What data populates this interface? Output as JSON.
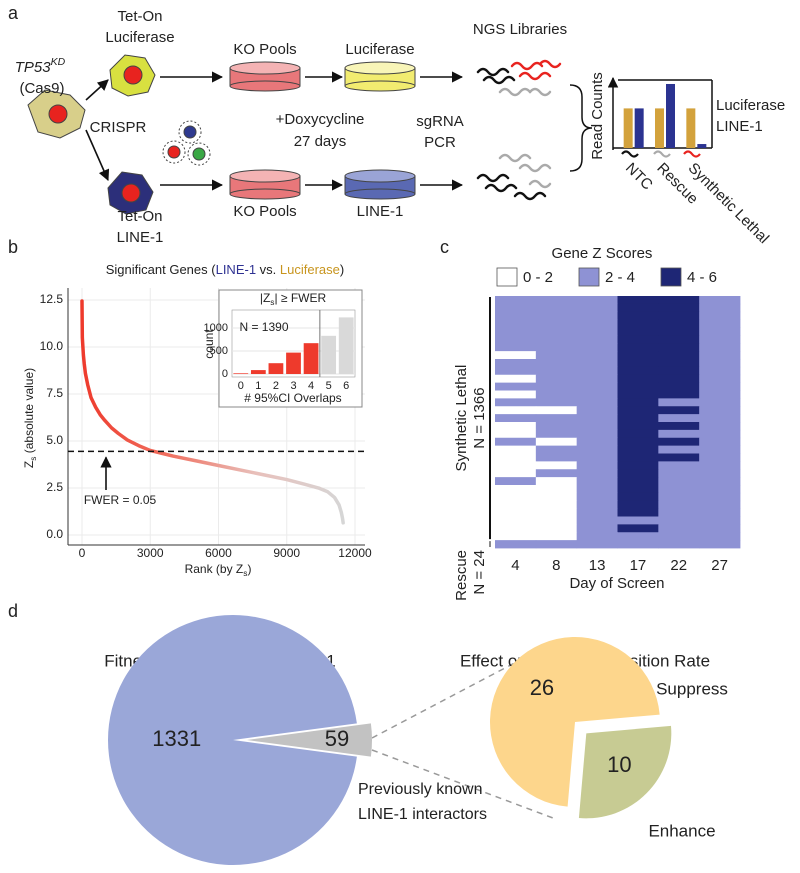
{
  "panel_labels": [
    "a",
    "b",
    "c",
    "d"
  ],
  "diagram": {
    "start_cell": {
      "label_parts": [
        {
          "text": "TP53",
          "italic": true
        },
        {
          "text": "KD",
          "sup": true,
          "italic": true
        }
      ],
      "sublabel": "(Cas9)"
    },
    "crispr": "CRISPR",
    "branches": [
      {
        "cell": [
          "Tet-On",
          "Luciferase"
        ],
        "pool": "KO Pools",
        "selected": "Luciferase",
        "color": "#c8951e"
      },
      {
        "cell": [
          "Tet-On",
          "LINE-1"
        ],
        "pool": "KO Pools",
        "selected": "LINE-1",
        "color": "#2e3192"
      }
    ],
    "treatment": [
      "+Doxycycline",
      "27 days"
    ],
    "amplification": [
      "sgRNA",
      "PCR"
    ],
    "libraries": "NGS Libraries"
  },
  "chart_data": [
    {
      "type": "bar",
      "ylabel": "Read Counts",
      "categories": [
        "NTC",
        "Rescue",
        "Synthetic Lethal"
      ],
      "series": [
        {
          "name": "Luciferase",
          "color": "#d3a23c",
          "values": [
            0.6,
            0.6,
            0.6
          ]
        },
        {
          "name": "LINE-1",
          "color": "#2b3391",
          "values": [
            0.6,
            0.97,
            0.06
          ]
        }
      ],
      "ylim": [
        0,
        1
      ]
    },
    {
      "type": "line",
      "title_parts": [
        {
          "text": "Significant Genes ("
        },
        {
          "text": "LINE-1",
          "color": "#2e3192"
        },
        {
          "text": " vs. "
        },
        {
          "text": "Luciferase",
          "color": "#c8951e"
        },
        {
          "text": ")"
        }
      ],
      "xlabel_parts": [
        {
          "text": "Rank (by Z"
        },
        {
          "text": "s",
          "sub": true
        },
        {
          "text": ")"
        }
      ],
      "ylabel_parts": [
        {
          "text": "Z"
        },
        {
          "text": "s",
          "sub": true
        },
        {
          "text": " (absolute value)"
        }
      ],
      "x": [
        0,
        15,
        30,
        60,
        100,
        150,
        250,
        400,
        600,
        800,
        1000,
        1300,
        1600,
        2000,
        2500,
        3000,
        3500,
        4000,
        5000,
        6000,
        7000,
        8000,
        9000,
        9800,
        10400,
        10800,
        11100,
        11300,
        11400,
        11450,
        11480
      ],
      "values": [
        12.45,
        10.5,
        10.2,
        9.6,
        9.1,
        8.6,
        8.0,
        7.3,
        6.8,
        6.4,
        6.1,
        5.7,
        5.4,
        5.05,
        4.75,
        4.5,
        4.35,
        4.2,
        3.95,
        3.7,
        3.45,
        3.2,
        2.95,
        2.7,
        2.5,
        2.3,
        2.0,
        1.6,
        1.2,
        0.9,
        0.65
      ],
      "gradient": [
        "#ee3a2c",
        "#f07060",
        "#e8c0bb",
        "#d6d6d6"
      ],
      "xlim": [
        -615,
        12440
      ],
      "xticks": [
        0,
        3000,
        6000,
        9000,
        12000
      ],
      "ylim": [
        -0.53,
        13.14
      ],
      "yticks": [
        {
          "value": 0,
          "label": "0.0"
        },
        2.5,
        {
          "value": 5,
          "label": "5.0"
        },
        7.5,
        {
          "value": 10,
          "label": "10.0"
        },
        12.5
      ],
      "grid": true,
      "hline": 4.45,
      "annotation": "FWER = 0.05"
    },
    {
      "type": "bar",
      "title_parts": [
        {
          "text": "|Z"
        },
        {
          "text": "s",
          "sub": true
        },
        {
          "text": "| ≥ FWER"
        }
      ],
      "annotation": "N = 1390",
      "xlabel": "# 95%CI Overlaps",
      "ylabel": "count",
      "categories": [
        "0",
        "1",
        "2",
        "3",
        "4",
        "5",
        "6"
      ],
      "values": [
        15,
        85,
        235,
        465,
        670,
        830,
        1230
      ],
      "colors": [
        "#ee3a2c",
        "#ee3a2c",
        "#ee3a2c",
        "#ee3a2c",
        "#ee3a2c",
        "#d9d9d9",
        "#d9d9d9"
      ],
      "ylim": [
        -65,
        1391
      ],
      "yticks": [
        0,
        500,
        1000
      ],
      "grid": true
    },
    {
      "type": "heatmap",
      "title": "Gene Z Scores",
      "legend": [
        {
          "label": "0 - 2",
          "color": "#ffffff",
          "range": [
            0,
            2
          ]
        },
        {
          "label": "2 - 4",
          "color": "#8e92d4",
          "range": [
            2,
            4
          ]
        },
        {
          "label": "4 - 6",
          "color": "#1e2675",
          "range": [
            4,
            6
          ]
        }
      ],
      "categories": [
        "4",
        "8",
        "13",
        "17",
        "22",
        "27"
      ],
      "xlabel": "Day of Screen",
      "groups": [
        {
          "name": "Synthetic Lethal",
          "label": "N = 1366",
          "color": "#111111",
          "values": [
            [
              3,
              3,
              3,
              5,
              5,
              3
            ],
            [
              2.5,
              3,
              3,
              5,
              4.5,
              3
            ],
            [
              3,
              3,
              3.5,
              5,
              5,
              3
            ],
            [
              3,
              2.5,
              3,
              4.5,
              4.5,
              3
            ],
            [
              3,
              3,
              3,
              5,
              4.5,
              2.5
            ],
            [
              2.5,
              3,
              3,
              4.5,
              5,
              3
            ],
            [
              3,
              3,
              3,
              4.5,
              4.5,
              3
            ],
            [
              1.5,
              3,
              3,
              5,
              4.5,
              3
            ],
            [
              3,
              2.5,
              3,
              4.5,
              4.5,
              3
            ],
            [
              2.5,
              3,
              3,
              4.5,
              4.5,
              3
            ],
            [
              1.5,
              3,
              3,
              4.5,
              4.5,
              3
            ],
            [
              3,
              2.5,
              3,
              4.5,
              4.5,
              2.5
            ],
            [
              1.5,
              2.5,
              3,
              4.5,
              4.5,
              3
            ],
            [
              2.5,
              3,
              3,
              4.5,
              3.5,
              3
            ],
            [
              1.5,
              1.5,
              3,
              4.5,
              4.5,
              2.5
            ],
            [
              3,
              2.5,
              3,
              4.5,
              3.5,
              3
            ],
            [
              1.5,
              3,
              3,
              4.5,
              4.5,
              3
            ],
            [
              1,
              2.5,
              3,
              4.5,
              3.5,
              2.5
            ],
            [
              2.5,
              1.5,
              3,
              4.5,
              4.5,
              3
            ],
            [
              1.5,
              2.5,
              3,
              4.5,
              3.5,
              3
            ],
            [
              1,
              3,
              3,
              4.5,
              4.5,
              2.5
            ],
            [
              1.5,
              1.5,
              3,
              4.5,
              3.5,
              3
            ],
            [
              1,
              2.5,
              3,
              4.5,
              3.5,
              3
            ],
            [
              2.5,
              1.5,
              3,
              4.5,
              3.5,
              2.5
            ],
            [
              1,
              1,
              3,
              4.5,
              3.5,
              3
            ],
            [
              1.5,
              1,
              3,
              4.5,
              3.5,
              3
            ],
            [
              1,
              1.5,
              3,
              4.5,
              3.5,
              2.5
            ],
            [
              1,
              1,
              3,
              4.5,
              3,
              3
            ],
            [
              1,
              1,
              3,
              3.5,
              3,
              3
            ],
            [
              1,
              1,
              3,
              4.5,
              3.5,
              3
            ],
            [
              1,
              1,
              3,
              3.5,
              3,
              2.5
            ]
          ]
        },
        {
          "name": "Rescue",
          "label": "N = 24",
          "color": "#8a8a8a",
          "values": [
            [
              3,
              3,
              3,
              3,
              3,
              3
            ]
          ]
        }
      ]
    },
    {
      "type": "pie",
      "title": "Fitness Interaction with LINE-1",
      "values": [
        1331,
        59
      ],
      "colors": [
        "#9aa7d8",
        "#c2c2c2"
      ],
      "explode": [
        false,
        true
      ],
      "annotation": [
        "Previously known",
        "LINE-1 interactors"
      ]
    },
    {
      "type": "pie",
      "title": "Effect on Retrotransposition Rate",
      "categories": [
        "Suppress",
        "Enhance"
      ],
      "values": [
        26,
        10
      ],
      "colors": [
        "#fdd68c",
        "#c7cb93"
      ],
      "explode": [
        false,
        true
      ]
    }
  ]
}
